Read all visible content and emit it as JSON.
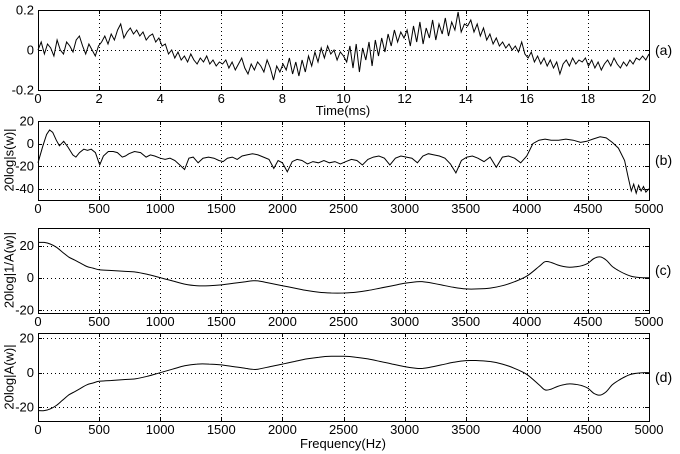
{
  "figure": {
    "background": "#ffffff",
    "axis_color": "#000000",
    "curve_color": "#000000",
    "grid_color": "#000000"
  },
  "chart_data": [
    {
      "id": "a",
      "type": "line",
      "tag": "(a)",
      "xlabel": "Time(ms)",
      "ylabel": "",
      "xlim": [
        0,
        20
      ],
      "ylim": [
        -0.2,
        0.2
      ],
      "xticks": [
        0,
        2,
        4,
        6,
        8,
        10,
        12,
        14,
        16,
        18,
        20
      ],
      "yticks": [
        0.2,
        0,
        -0.2
      ],
      "grid": true,
      "smooth": false,
      "y_uniform": [
        0,
        0.04,
        -0.02,
        0.03,
        0.01,
        -0.03,
        0.05,
        0,
        -0.02,
        0.04,
        0.02,
        -0.01,
        0.05,
        0.07,
        0.02,
        -0.02,
        0.03,
        0,
        -0.03,
        0.02,
        0.04,
        0.07,
        0.03,
        0.08,
        0.05,
        0.1,
        0.13,
        0.06,
        0.09,
        0.11,
        0.08,
        0.1,
        0.07,
        0.09,
        0.05,
        0.07,
        0.08,
        0.04,
        0.06,
        0.02,
        0.03,
        -0.02,
        0,
        -0.04,
        -0.01,
        -0.05,
        -0.03,
        -0.06,
        -0.02,
        -0.05,
        -0.07,
        -0.04,
        -0.06,
        -0.03,
        -0.07,
        -0.05,
        -0.08,
        -0.06,
        -0.07,
        -0.05,
        -0.09,
        -0.06,
        -0.1,
        -0.07,
        -0.04,
        -0.09,
        -0.12,
        -0.07,
        -0.1,
        -0.06,
        -0.08,
        -0.11,
        -0.05,
        -0.09,
        -0.15,
        -0.08,
        -0.11,
        -0.07,
        -0.1,
        -0.04,
        -0.12,
        -0.06,
        -0.13,
        -0.05,
        -0.11,
        -0.03,
        -0.08,
        -0.01,
        -0.06,
        0.01,
        -0.04,
        0.02,
        -0.02,
        0,
        -0.05,
        -0.01,
        -0.03,
        -0.06,
        0.02,
        -0.09,
        0.03,
        -0.11,
        0.01,
        -0.05,
        0.04,
        -0.08,
        0.05,
        -0.03,
        0.06,
        -0.01,
        0.08,
        0.02,
        0.1,
        0.04,
        0.09,
        0.06,
        0.1,
        0.02,
        0.12,
        0.04,
        0.14,
        0.03,
        0.11,
        0.06,
        0.15,
        0.05,
        0.13,
        0.08,
        0.16,
        0.07,
        0.14,
        0.1,
        0.19,
        0.09,
        0.13,
        0.12,
        0.15,
        0.09,
        0.13,
        0.07,
        0.11,
        0.05,
        0.08,
        0.03,
        0.06,
        0.02,
        0.04,
        0.01,
        0.03,
        0,
        0.02,
        -0.01,
        0.04,
        -0.02,
        -0.04,
        -0.01,
        -0.06,
        -0.03,
        -0.07,
        -0.04,
        -0.08,
        -0.05,
        -0.09,
        -0.06,
        -0.12,
        -0.07,
        -0.05,
        -0.08,
        -0.04,
        -0.07,
        -0.05,
        -0.06,
        -0.04,
        -0.08,
        -0.05,
        -0.09,
        -0.06,
        -0.1,
        -0.07,
        -0.05,
        -0.08,
        -0.04,
        -0.07,
        -0.09,
        -0.06,
        -0.08,
        -0.05,
        -0.07,
        -0.04,
        -0.05,
        -0.03,
        -0.05,
        -0.02
      ]
    },
    {
      "id": "b",
      "type": "line",
      "tag": "(b)",
      "xlabel": "",
      "ylabel": "20log|s(w)|",
      "xlim": [
        0,
        5000
      ],
      "ylim": [
        -50,
        20
      ],
      "xticks": [
        0,
        500,
        1000,
        1500,
        2000,
        2500,
        3000,
        3500,
        4000,
        4500,
        5000
      ],
      "yticks": [
        20,
        0,
        -20,
        -40
      ],
      "grid": true,
      "smooth": false,
      "points": [
        [
          0,
          -17
        ],
        [
          40,
          -2
        ],
        [
          70,
          8
        ],
        [
          95,
          12
        ],
        [
          120,
          10
        ],
        [
          150,
          3
        ],
        [
          175,
          -2
        ],
        [
          210,
          2
        ],
        [
          245,
          -3
        ],
        [
          285,
          -10
        ],
        [
          310,
          -12
        ],
        [
          340,
          -8
        ],
        [
          375,
          -5
        ],
        [
          405,
          -6
        ],
        [
          435,
          -5
        ],
        [
          470,
          -8
        ],
        [
          505,
          -19
        ],
        [
          535,
          -11
        ],
        [
          575,
          -7
        ],
        [
          615,
          -7
        ],
        [
          650,
          -8
        ],
        [
          690,
          -12
        ],
        [
          715,
          -11
        ],
        [
          745,
          -9
        ],
        [
          790,
          -7
        ],
        [
          840,
          -8
        ],
        [
          885,
          -12
        ],
        [
          920,
          -10
        ],
        [
          955,
          -11
        ],
        [
          1000,
          -13
        ],
        [
          1040,
          -14
        ],
        [
          1080,
          -13
        ],
        [
          1120,
          -15
        ],
        [
          1160,
          -19
        ],
        [
          1200,
          -23
        ],
        [
          1235,
          -13
        ],
        [
          1270,
          -12
        ],
        [
          1310,
          -17
        ],
        [
          1350,
          -13
        ],
        [
          1395,
          -12
        ],
        [
          1440,
          -13
        ],
        [
          1480,
          -15
        ],
        [
          1515,
          -16
        ],
        [
          1550,
          -13
        ],
        [
          1590,
          -12
        ],
        [
          1630,
          -14
        ],
        [
          1670,
          -11
        ],
        [
          1710,
          -10
        ],
        [
          1755,
          -9
        ],
        [
          1800,
          -10
        ],
        [
          1845,
          -12
        ],
        [
          1890,
          -14
        ],
        [
          1930,
          -22
        ],
        [
          1965,
          -15
        ],
        [
          2000,
          -17
        ],
        [
          2040,
          -25
        ],
        [
          2080,
          -16
        ],
        [
          2120,
          -14
        ],
        [
          2160,
          -15
        ],
        [
          2205,
          -18
        ],
        [
          2250,
          -16
        ],
        [
          2295,
          -17
        ],
        [
          2340,
          -15
        ],
        [
          2385,
          -17
        ],
        [
          2430,
          -16
        ],
        [
          2475,
          -18
        ],
        [
          2520,
          -16
        ],
        [
          2565,
          -14
        ],
        [
          2610,
          -15
        ],
        [
          2655,
          -19
        ],
        [
          2700,
          -14
        ],
        [
          2745,
          -12
        ],
        [
          2790,
          -11
        ],
        [
          2835,
          -13
        ],
        [
          2880,
          -19
        ],
        [
          2925,
          -13
        ],
        [
          2970,
          -11
        ],
        [
          3015,
          -12
        ],
        [
          3060,
          -13
        ],
        [
          3105,
          -17
        ],
        [
          3150,
          -11
        ],
        [
          3195,
          -9
        ],
        [
          3240,
          -10
        ],
        [
          3285,
          -11
        ],
        [
          3330,
          -13
        ],
        [
          3375,
          -18
        ],
        [
          3420,
          -26
        ],
        [
          3465,
          -15
        ],
        [
          3510,
          -12
        ],
        [
          3555,
          -11
        ],
        [
          3600,
          -13
        ],
        [
          3650,
          -16
        ],
        [
          3700,
          -12
        ],
        [
          3750,
          -21
        ],
        [
          3800,
          -12
        ],
        [
          3850,
          -11
        ],
        [
          3900,
          -13
        ],
        [
          3950,
          -17
        ],
        [
          4000,
          -11
        ],
        [
          4050,
          0
        ],
        [
          4100,
          3
        ],
        [
          4150,
          4
        ],
        [
          4200,
          3
        ],
        [
          4260,
          3
        ],
        [
          4320,
          4
        ],
        [
          4380,
          3
        ],
        [
          4440,
          1
        ],
        [
          4490,
          2
        ],
        [
          4540,
          4
        ],
        [
          4600,
          6
        ],
        [
          4650,
          5
        ],
        [
          4700,
          1
        ],
        [
          4750,
          -4
        ],
        [
          4800,
          -15
        ],
        [
          4830,
          -30
        ],
        [
          4855,
          -42
        ],
        [
          4875,
          -36
        ],
        [
          4895,
          -44
        ],
        [
          4915,
          -37
        ],
        [
          4935,
          -42
        ],
        [
          4955,
          -38
        ],
        [
          4975,
          -43
        ],
        [
          5000,
          -40
        ]
      ]
    },
    {
      "id": "c",
      "type": "line",
      "tag": "(c)",
      "xlabel": "",
      "ylabel": "20log|1/A(w)|",
      "xlim": [
        0,
        5000
      ],
      "ylim": [
        -22,
        31
      ],
      "xticks": [
        0,
        500,
        1000,
        1500,
        2000,
        2500,
        3000,
        3500,
        4000,
        4500,
        5000
      ],
      "yticks": [
        20,
        0,
        -20
      ],
      "grid": true,
      "smooth": true,
      "points": [
        [
          0,
          22
        ],
        [
          50,
          22
        ],
        [
          100,
          21
        ],
        [
          150,
          19
        ],
        [
          200,
          16
        ],
        [
          250,
          13
        ],
        [
          300,
          11
        ],
        [
          350,
          9
        ],
        [
          400,
          7
        ],
        [
          450,
          6
        ],
        [
          500,
          5
        ],
        [
          600,
          4.5
        ],
        [
          700,
          4
        ],
        [
          800,
          3.5
        ],
        [
          900,
          2
        ],
        [
          1000,
          0
        ],
        [
          1100,
          -2
        ],
        [
          1200,
          -4
        ],
        [
          1300,
          -5
        ],
        [
          1400,
          -5
        ],
        [
          1500,
          -4.5
        ],
        [
          1600,
          -3.5
        ],
        [
          1700,
          -2.5
        ],
        [
          1750,
          -2
        ],
        [
          1800,
          -2
        ],
        [
          1900,
          -3.5
        ],
        [
          2000,
          -5
        ],
        [
          2100,
          -6.5
        ],
        [
          2200,
          -8
        ],
        [
          2300,
          -9
        ],
        [
          2400,
          -9.5
        ],
        [
          2500,
          -9.5
        ],
        [
          2600,
          -9
        ],
        [
          2700,
          -8
        ],
        [
          2800,
          -6.5
        ],
        [
          2900,
          -5
        ],
        [
          3000,
          -3.5
        ],
        [
          3100,
          -2.5
        ],
        [
          3150,
          -2.5
        ],
        [
          3200,
          -3
        ],
        [
          3300,
          -4.5
        ],
        [
          3400,
          -6
        ],
        [
          3500,
          -7
        ],
        [
          3600,
          -7
        ],
        [
          3700,
          -6.5
        ],
        [
          3800,
          -5
        ],
        [
          3900,
          -2.5
        ],
        [
          4000,
          1
        ],
        [
          4100,
          7
        ],
        [
          4150,
          10
        ],
        [
          4200,
          9.5
        ],
        [
          4250,
          8
        ],
        [
          4300,
          7
        ],
        [
          4350,
          6.5
        ],
        [
          4400,
          6.8
        ],
        [
          4450,
          7.5
        ],
        [
          4500,
          9
        ],
        [
          4550,
          12
        ],
        [
          4600,
          13
        ],
        [
          4650,
          11
        ],
        [
          4700,
          7
        ],
        [
          4750,
          4.5
        ],
        [
          4800,
          2.5
        ],
        [
          4850,
          1
        ],
        [
          4900,
          0.3
        ],
        [
          4950,
          0
        ],
        [
          5000,
          0
        ]
      ]
    },
    {
      "id": "d",
      "type": "line",
      "tag": "(d)",
      "xlabel": "Frequency(Hz)",
      "ylabel": "20log|A(w)|",
      "xlim": [
        0,
        5000
      ],
      "ylim": [
        -28,
        23
      ],
      "xticks": [
        0,
        500,
        1000,
        1500,
        2000,
        2500,
        3000,
        3500,
        4000,
        4500,
        5000
      ],
      "yticks": [
        20,
        0,
        -20
      ],
      "grid": true,
      "smooth": true,
      "points": [
        [
          0,
          -22
        ],
        [
          50,
          -22
        ],
        [
          100,
          -21
        ],
        [
          150,
          -19
        ],
        [
          200,
          -16
        ],
        [
          250,
          -13
        ],
        [
          300,
          -11
        ],
        [
          350,
          -9
        ],
        [
          400,
          -7
        ],
        [
          450,
          -6
        ],
        [
          500,
          -5
        ],
        [
          600,
          -4.5
        ],
        [
          700,
          -4
        ],
        [
          800,
          -3.5
        ],
        [
          900,
          -2
        ],
        [
          1000,
          0
        ],
        [
          1100,
          2
        ],
        [
          1200,
          4
        ],
        [
          1300,
          5
        ],
        [
          1400,
          5
        ],
        [
          1500,
          4.5
        ],
        [
          1600,
          3.5
        ],
        [
          1700,
          2.5
        ],
        [
          1750,
          2
        ],
        [
          1800,
          2
        ],
        [
          1900,
          3.5
        ],
        [
          2000,
          5
        ],
        [
          2100,
          6.5
        ],
        [
          2200,
          8
        ],
        [
          2300,
          9
        ],
        [
          2400,
          9.5
        ],
        [
          2500,
          9.5
        ],
        [
          2600,
          9
        ],
        [
          2700,
          8
        ],
        [
          2800,
          6.5
        ],
        [
          2900,
          5
        ],
        [
          3000,
          3.5
        ],
        [
          3100,
          2.5
        ],
        [
          3150,
          2.5
        ],
        [
          3200,
          3
        ],
        [
          3300,
          4.5
        ],
        [
          3400,
          6
        ],
        [
          3500,
          7
        ],
        [
          3600,
          7
        ],
        [
          3700,
          6.5
        ],
        [
          3800,
          5
        ],
        [
          3900,
          2.5
        ],
        [
          4000,
          -1
        ],
        [
          4100,
          -7
        ],
        [
          4150,
          -10
        ],
        [
          4200,
          -9.5
        ],
        [
          4250,
          -8
        ],
        [
          4300,
          -7
        ],
        [
          4350,
          -6.5
        ],
        [
          4400,
          -6.8
        ],
        [
          4450,
          -7.5
        ],
        [
          4500,
          -9
        ],
        [
          4550,
          -12
        ],
        [
          4600,
          -13
        ],
        [
          4650,
          -11
        ],
        [
          4700,
          -7
        ],
        [
          4750,
          -4.5
        ],
        [
          4800,
          -2.5
        ],
        [
          4850,
          -1
        ],
        [
          4900,
          -0.3
        ],
        [
          4950,
          0
        ],
        [
          5000,
          0
        ]
      ]
    }
  ]
}
